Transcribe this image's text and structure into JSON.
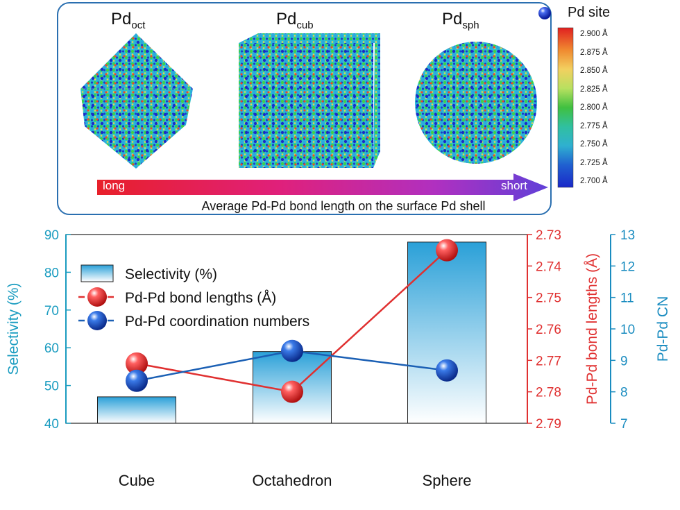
{
  "top_panel": {
    "particles": [
      {
        "base": "Pd",
        "sub": "oct"
      },
      {
        "base": "Pd",
        "sub": "cub"
      },
      {
        "base": "Pd",
        "sub": "sph"
      }
    ],
    "site_legend": "Pd site",
    "color_scale": {
      "ticks": [
        "2.900 Å",
        "2.875 Å",
        "2.850 Å",
        "2.825 Å",
        "2.800 Å",
        "2.775 Å",
        "2.750 Å",
        "2.725 Å",
        "2.700 Å"
      ],
      "colors": [
        "#e02020",
        "#f08a30",
        "#f2d060",
        "#d8e070",
        "#40c040",
        "#30c0a0",
        "#2fb0d0",
        "#2060d0",
        "#1a28c8"
      ]
    },
    "arrow": {
      "left_label": "long",
      "right_label": "short",
      "caption": "Average Pd-Pd bond length on the surface Pd shell",
      "gradient": [
        "#e8202a",
        "#e0207a",
        "#b030c0",
        "#6040d8"
      ]
    }
  },
  "chart_data": {
    "type": "bar",
    "categories": [
      "Cube",
      "Octahedron",
      "Sphere"
    ],
    "series": [
      {
        "name": "Selectivity (%)",
        "type": "bar",
        "axis": "left",
        "values": [
          47,
          59,
          88
        ],
        "color": "#2aa0d8"
      },
      {
        "name": "Pd-Pd bond lengths (Å)",
        "type": "line",
        "axis": "right1",
        "values": [
          2.771,
          2.78,
          2.735
        ],
        "color": "#e03030"
      },
      {
        "name": "Pd-Pd coordination numbers",
        "type": "line",
        "axis": "right2",
        "values": [
          8.35,
          9.3,
          8.68
        ],
        "color": "#1a5fb4"
      }
    ],
    "axes": {
      "left": {
        "label": "Selectivity (%)",
        "min": 40,
        "max": 90,
        "ticks": [
          "40",
          "50",
          "60",
          "70",
          "80",
          "90"
        ],
        "color": "#1a9cc0"
      },
      "right1": {
        "label": "Pd-Pd bond lengths (Å)",
        "min": 2.73,
        "max": 2.79,
        "inverted": true,
        "ticks": [
          "2.73",
          "2.74",
          "2.75",
          "2.76",
          "2.77",
          "2.78",
          "2.79"
        ],
        "color": "#e03030"
      },
      "right2": {
        "label": "Pd-Pd CN",
        "min": 7,
        "max": 13,
        "ticks": [
          "7",
          "8",
          "9",
          "10",
          "11",
          "12",
          "13"
        ],
        "color": "#1a8cc0"
      }
    },
    "legend_position": "top-left",
    "grid": false
  }
}
